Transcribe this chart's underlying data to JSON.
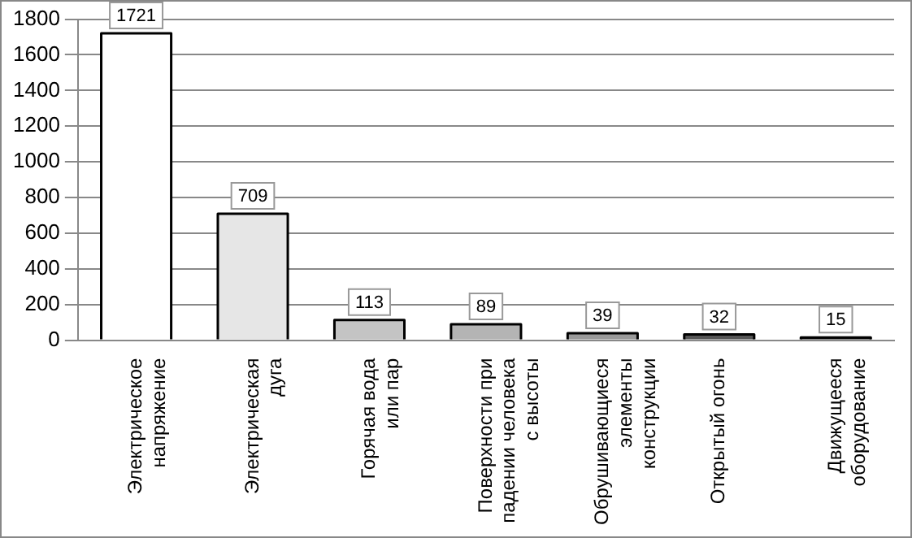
{
  "chart_data": {
    "type": "bar",
    "categories": [
      "Электрическое\nнапряжение",
      "Электрическая\nдуга",
      "Горячая вода\nили пар",
      "Поверхности при\nпадении человека\nс высоты",
      "Обрушивающиеся\nэлементы\nконструкции",
      "Открытый огонь",
      "Движущееся\nоборудование"
    ],
    "values": [
      1721,
      709,
      113,
      89,
      39,
      32,
      15
    ],
    "colors": [
      "#ffffff",
      "#e6e6e6",
      "#c4c4c4",
      "#b4b4b4",
      "#999999",
      "#555555",
      "#1a1a1a"
    ],
    "ylim": [
      0,
      1800
    ],
    "yticks": [
      0,
      200,
      400,
      600,
      800,
      1000,
      1200,
      1400,
      1600,
      1800
    ],
    "grid": "y",
    "legend": false,
    "data_labels": true
  }
}
